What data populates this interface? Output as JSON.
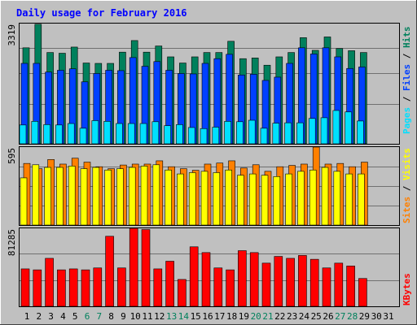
{
  "chart_data": [
    {
      "type": "bar",
      "title": "Daily usage for February 2016",
      "series": [
        {
          "name": "Hits",
          "values": [
            2650,
            3300,
            2520,
            2500,
            2670,
            2230,
            2220,
            2220,
            2530,
            2850,
            2530,
            2700,
            2400,
            2230,
            2400,
            2520,
            2520,
            2830,
            2350,
            2370,
            2170,
            2400,
            2520,
            2930,
            2580,
            2950,
            2630,
            2570,
            2520
          ]
        },
        {
          "name": "Files",
          "values": [
            2220,
            2220,
            1980,
            2030,
            2070,
            1710,
            1940,
            2030,
            2020,
            2380,
            2140,
            2270,
            2030,
            1940,
            1930,
            2220,
            2350,
            2470,
            1900,
            1920,
            1750,
            1840,
            2220,
            2650,
            2480,
            2650,
            2400,
            2080,
            2120
          ]
        },
        {
          "name": "Pages",
          "values": [
            520,
            620,
            530,
            520,
            560,
            430,
            640,
            620,
            560,
            560,
            560,
            610,
            500,
            530,
            450,
            420,
            460,
            620,
            610,
            650,
            430,
            570,
            580,
            580,
            700,
            720,
            920,
            880,
            630
          ]
        }
      ],
      "ymax_label": "3319",
      "right_labels": [
        "Pages",
        "Files",
        "Hits"
      ]
    },
    {
      "type": "bar",
      "series": [
        {
          "name": "Visits",
          "values": [
            360,
            460,
            440,
            440,
            450,
            430,
            440,
            420,
            430,
            440,
            450,
            460,
            420,
            390,
            400,
            410,
            400,
            420,
            380,
            390,
            380,
            370,
            390,
            410,
            420,
            440,
            410,
            390,
            390
          ]
        },
        {
          "name": "Sites",
          "values": [
            470,
            430,
            500,
            465,
            510,
            480,
            445,
            430,
            458,
            465,
            465,
            490,
            445,
            430,
            418,
            465,
            473,
            490,
            435,
            460,
            410,
            445,
            455,
            465,
            595,
            465,
            470,
            445,
            480
          ]
        }
      ],
      "ymax_label": "595",
      "right_labels": [
        "Sites",
        "Visits"
      ]
    },
    {
      "type": "bar",
      "series": [
        {
          "name": "KBytes",
          "values": [
            39000,
            38000,
            50000,
            38000,
            39000,
            38000,
            40000,
            73000,
            40000,
            81285,
            80000,
            39000,
            47000,
            28000,
            62000,
            56000,
            40000,
            38000,
            58000,
            56000,
            45000,
            52000,
            50000,
            53000,
            49000,
            40000,
            45000,
            42000,
            29000
          ]
        }
      ],
      "ymax_label": "81285",
      "right_labels": [
        "KBytes"
      ]
    }
  ],
  "x_labels": [
    "1",
    "2",
    "3",
    "4",
    "5",
    "6",
    "7",
    "8",
    "9",
    "10",
    "11",
    "12",
    "13",
    "14",
    "15",
    "16",
    "17",
    "18",
    "19",
    "20",
    "21",
    "22",
    "23",
    "24",
    "25",
    "26",
    "27",
    "28",
    "29",
    "30",
    "31"
  ],
  "weekend_days": [
    6,
    7,
    13,
    14,
    20,
    21,
    27,
    28
  ],
  "colors": {
    "hits": "#00805c",
    "files": "#0040ff",
    "pages": "#00e0ff",
    "visits": "#ffff00",
    "sites": "#ff8000",
    "kbytes": "#ff0000",
    "title": "#0000ff",
    "weekend": "#00805c",
    "axis_text": "#000000",
    "panel_bg": "#c0c0c0",
    "frame_bg": "#c0c0c0"
  }
}
